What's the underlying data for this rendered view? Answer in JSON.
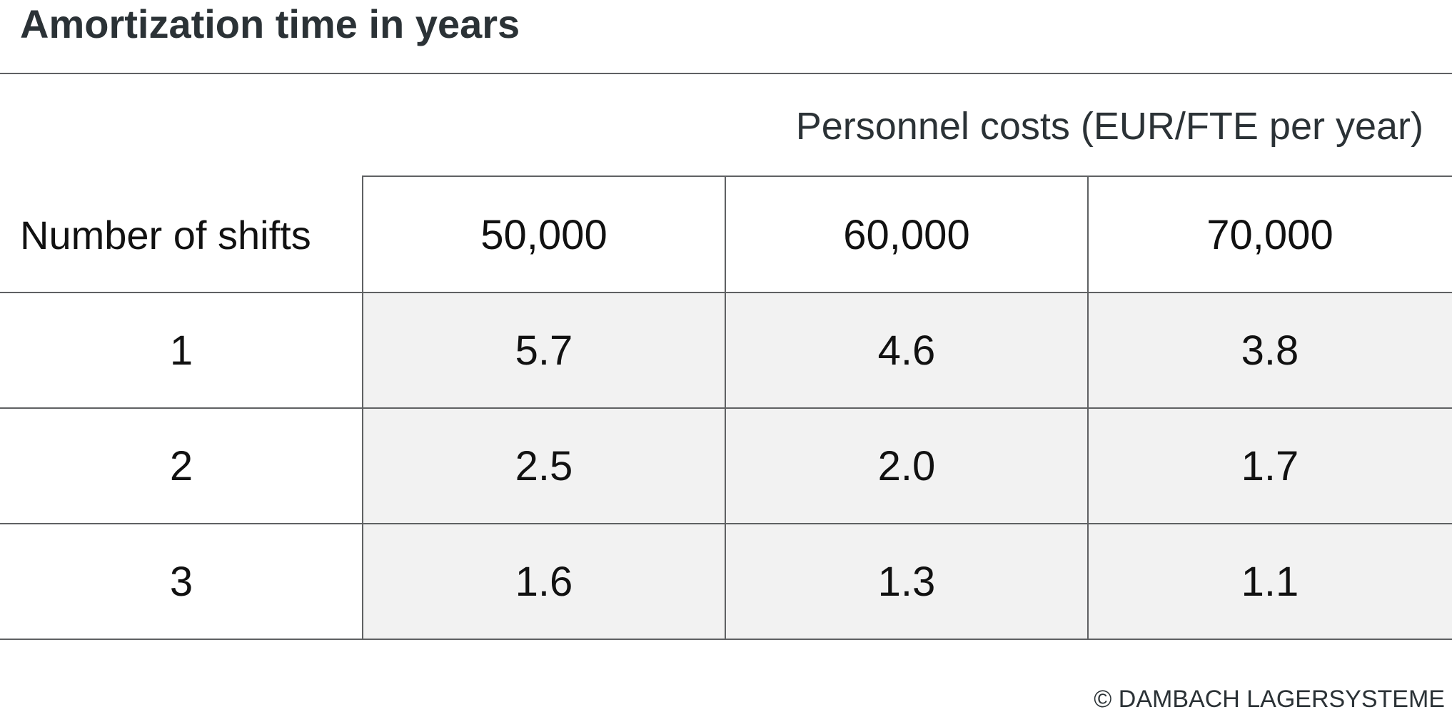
{
  "title": "Amortization time in years",
  "table": {
    "group_header": "Personnel costs (EUR/FTE per year)",
    "row_header": "Number of shifts",
    "columns": [
      "50,000",
      "60,000",
      "70,000"
    ],
    "rows": [
      {
        "label": "1",
        "values": [
          "5.7",
          "4.6",
          "3.8"
        ]
      },
      {
        "label": "2",
        "values": [
          "2.5",
          "2.0",
          "1.7"
        ]
      },
      {
        "label": "3",
        "values": [
          "1.6",
          "1.3",
          "1.1"
        ]
      }
    ]
  },
  "copyright": "© DAMBACH LAGERSYSTEME"
}
